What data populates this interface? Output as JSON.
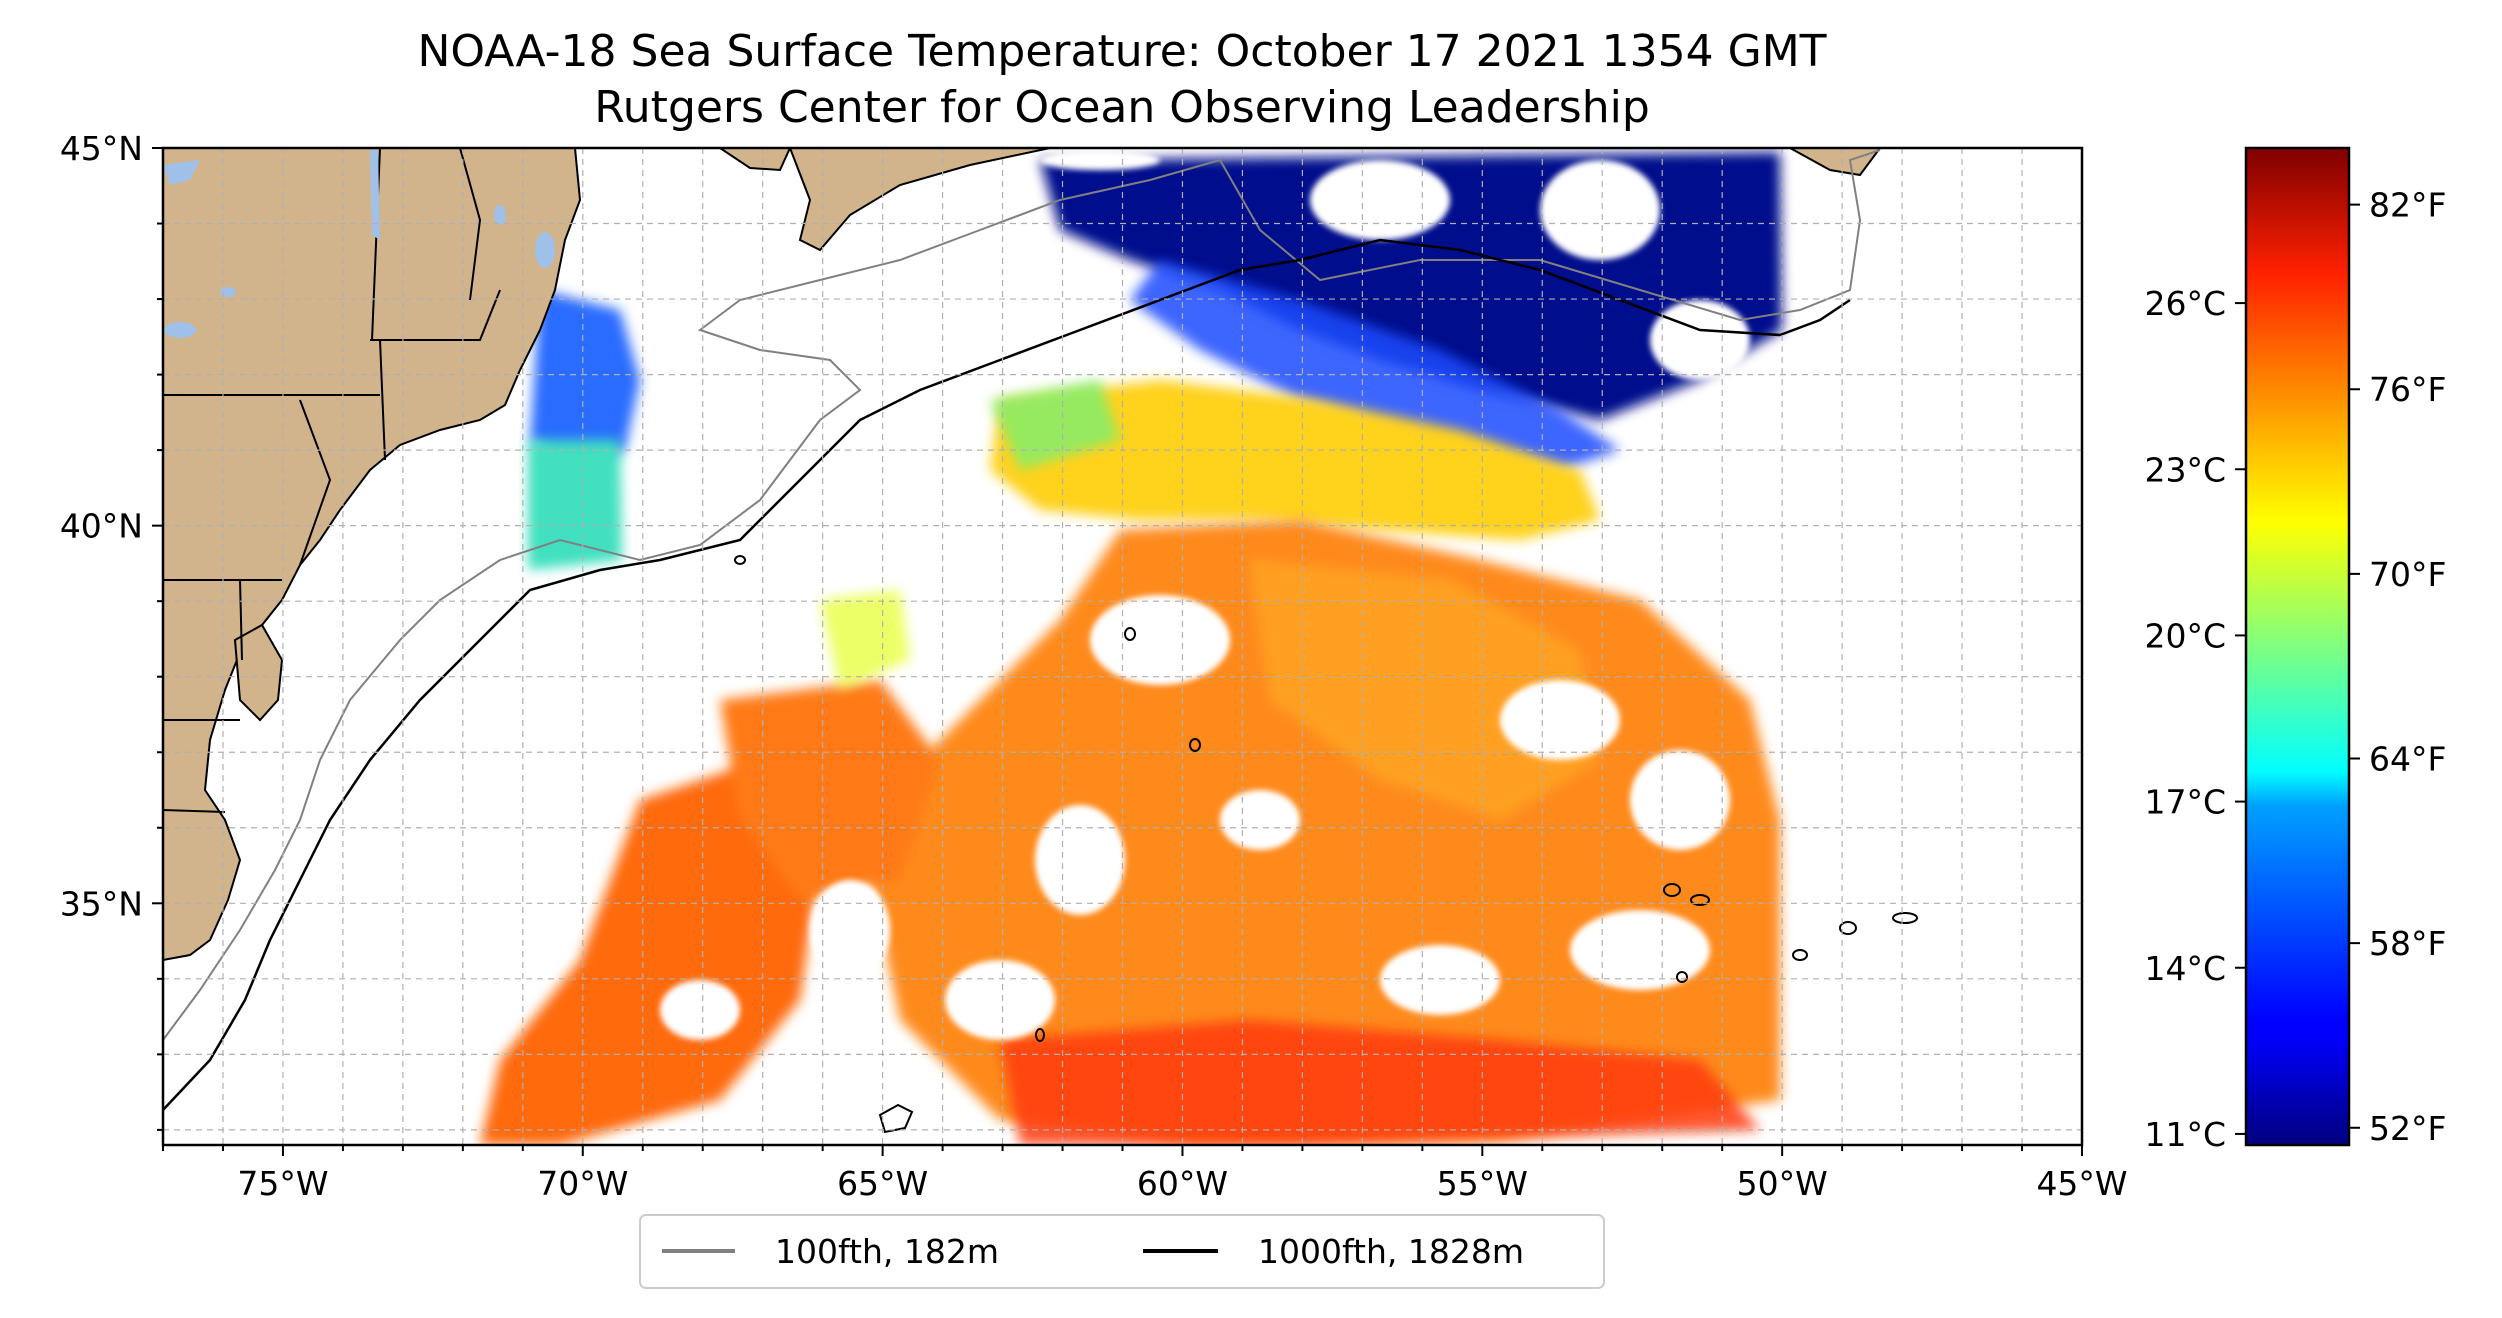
{
  "title": {
    "line1": "NOAA-18 Sea Surface Temperature: October 17 2021 1354 GMT",
    "line2": "Rutgers Center for Ocean Observing Leadership"
  },
  "map": {
    "lon_range": [
      -77,
      -45
    ],
    "lat_range": [
      31.8,
      45
    ],
    "lon_ticks": [
      {
        "value": -75,
        "label": "75°W"
      },
      {
        "value": -70,
        "label": "70°W"
      },
      {
        "value": -65,
        "label": "65°W"
      },
      {
        "value": -60,
        "label": "60°W"
      },
      {
        "value": -55,
        "label": "55°W"
      },
      {
        "value": -50,
        "label": "50°W"
      },
      {
        "value": -45,
        "label": "45°W"
      }
    ],
    "lat_ticks": [
      {
        "value": 45,
        "label": "45°N"
      },
      {
        "value": 40,
        "label": "40°N"
      },
      {
        "value": 35,
        "label": "35°N"
      }
    ],
    "grid_lon_step": 1,
    "grid_lat_step": 1,
    "grid": true,
    "colors": {
      "land": "#d2b48c",
      "lakes": "#9fc0e8",
      "isobath_100": "#808080",
      "isobath_1000": "#000000",
      "grid": "#b0b0b0"
    }
  },
  "legend": {
    "placement": "bottom-center",
    "items": [
      {
        "label": "100fth, 182m",
        "color": "#808080"
      },
      {
        "label": "1000fth, 1828m",
        "color": "#000000"
      }
    ]
  },
  "colorbar": {
    "colormap": "jet",
    "range_c": [
      10.8,
      28.8
    ],
    "celsius_ticks": [
      {
        "value": 11,
        "label": "11°C"
      },
      {
        "value": 14,
        "label": "14°C"
      },
      {
        "value": 17,
        "label": "17°C"
      },
      {
        "value": 20,
        "label": "20°C"
      },
      {
        "value": 23,
        "label": "23°C"
      },
      {
        "value": 26,
        "label": "26°C"
      }
    ],
    "fahrenheit_ticks": [
      {
        "value": 52,
        "label": "52°F"
      },
      {
        "value": 58,
        "label": "58°F"
      },
      {
        "value": 64,
        "label": "64°F"
      },
      {
        "value": 70,
        "label": "70°F"
      },
      {
        "value": 76,
        "label": "76°F"
      },
      {
        "value": 82,
        "label": "82°F"
      }
    ]
  }
}
